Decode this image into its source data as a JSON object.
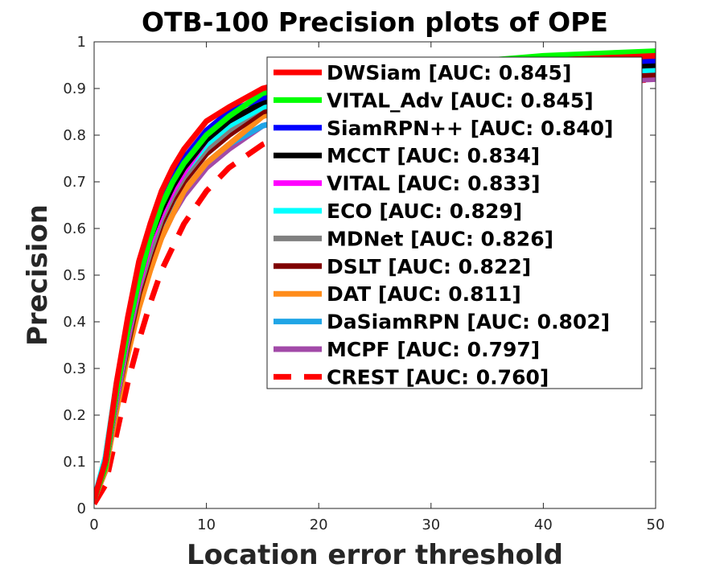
{
  "chart_data": {
    "type": "line",
    "title": "OTB-100  Precision plots of OPE",
    "xlabel": "Location error threshold",
    "ylabel": "Precision",
    "xlim": [
      0,
      50
    ],
    "ylim": [
      0,
      1
    ],
    "xticks": [
      "0",
      "10",
      "20",
      "30",
      "40",
      "50"
    ],
    "yticks": [
      "0",
      "0.1",
      "0.2",
      "0.3",
      "0.4",
      "0.5",
      "0.6",
      "0.7",
      "0.8",
      "0.9",
      "1"
    ],
    "grid": false,
    "legend_position": "top-right",
    "x": [
      0,
      1,
      2,
      3,
      4,
      5,
      6,
      7,
      8,
      10,
      12,
      15,
      20,
      25,
      30,
      40,
      50
    ],
    "series": [
      {
        "name": "DWSiam [AUC: 0.845]",
        "color": "#ff0000",
        "style": "solid",
        "values": [
          0.02,
          0.1,
          0.27,
          0.41,
          0.53,
          0.61,
          0.68,
          0.73,
          0.77,
          0.83,
          0.86,
          0.9,
          0.93,
          0.94,
          0.95,
          0.96,
          0.97
        ]
      },
      {
        "name": "VITAL_Adv [AUC: 0.845]",
        "color": "#00ff00",
        "style": "solid",
        "values": [
          0.02,
          0.09,
          0.25,
          0.38,
          0.49,
          0.58,
          0.65,
          0.7,
          0.74,
          0.8,
          0.84,
          0.89,
          0.92,
          0.94,
          0.95,
          0.97,
          0.98
        ]
      },
      {
        "name": "SiamRPN++ [AUC: 0.840]",
        "color": "#0000ff",
        "style": "solid",
        "values": [
          0.02,
          0.1,
          0.26,
          0.4,
          0.52,
          0.6,
          0.66,
          0.71,
          0.75,
          0.81,
          0.85,
          0.88,
          0.91,
          0.93,
          0.94,
          0.95,
          0.96
        ]
      },
      {
        "name": "MCCT [AUC: 0.834]",
        "color": "#000000",
        "style": "solid",
        "values": [
          0.02,
          0.09,
          0.25,
          0.38,
          0.49,
          0.58,
          0.64,
          0.69,
          0.73,
          0.79,
          0.83,
          0.87,
          0.9,
          0.92,
          0.93,
          0.94,
          0.95
        ]
      },
      {
        "name": "VITAL [AUC: 0.833]",
        "color": "#ff00ff",
        "style": "solid",
        "values": [
          0.02,
          0.09,
          0.24,
          0.37,
          0.48,
          0.57,
          0.63,
          0.68,
          0.72,
          0.79,
          0.83,
          0.87,
          0.9,
          0.92,
          0.93,
          0.94,
          0.95
        ]
      },
      {
        "name": "ECO [AUC: 0.829]",
        "color": "#00ffff",
        "style": "solid",
        "values": [
          0.02,
          0.11,
          0.27,
          0.39,
          0.49,
          0.57,
          0.63,
          0.68,
          0.72,
          0.78,
          0.82,
          0.86,
          0.89,
          0.91,
          0.92,
          0.93,
          0.94
        ]
      },
      {
        "name": "MDNet [AUC: 0.826]",
        "color": "#808080",
        "style": "solid",
        "values": [
          0.02,
          0.09,
          0.23,
          0.36,
          0.47,
          0.55,
          0.62,
          0.67,
          0.71,
          0.77,
          0.81,
          0.86,
          0.89,
          0.91,
          0.92,
          0.93,
          0.94
        ]
      },
      {
        "name": "DSLT [AUC: 0.822]",
        "color": "#800000",
        "style": "solid",
        "values": [
          0.02,
          0.09,
          0.23,
          0.35,
          0.46,
          0.54,
          0.61,
          0.66,
          0.7,
          0.76,
          0.8,
          0.85,
          0.88,
          0.9,
          0.91,
          0.92,
          0.93
        ]
      },
      {
        "name": "DAT [AUC: 0.811]",
        "color": "#ff8c1a",
        "style": "solid",
        "values": [
          0.02,
          0.08,
          0.21,
          0.33,
          0.43,
          0.51,
          0.58,
          0.63,
          0.68,
          0.74,
          0.78,
          0.84,
          0.88,
          0.91,
          0.92,
          0.94,
          0.96
        ]
      },
      {
        "name": "DaSiamRPN [AUC: 0.802]",
        "color": "#1fa5e6",
        "style": "solid",
        "values": [
          0.02,
          0.09,
          0.23,
          0.35,
          0.45,
          0.53,
          0.59,
          0.64,
          0.68,
          0.74,
          0.78,
          0.82,
          0.85,
          0.88,
          0.9,
          0.92,
          0.94
        ]
      },
      {
        "name": "MCPF [AUC: 0.797]",
        "color": "#a24aa8",
        "style": "solid",
        "values": [
          0.02,
          0.08,
          0.22,
          0.34,
          0.44,
          0.52,
          0.58,
          0.63,
          0.67,
          0.73,
          0.77,
          0.82,
          0.85,
          0.88,
          0.89,
          0.91,
          0.92
        ]
      },
      {
        "name": "CREST [AUC: 0.760]",
        "color": "#ff0000",
        "style": "dashed",
        "values": [
          0.01,
          0.05,
          0.16,
          0.27,
          0.36,
          0.44,
          0.51,
          0.56,
          0.61,
          0.68,
          0.73,
          0.78,
          0.83,
          0.86,
          0.88,
          0.9,
          0.92
        ]
      }
    ]
  }
}
